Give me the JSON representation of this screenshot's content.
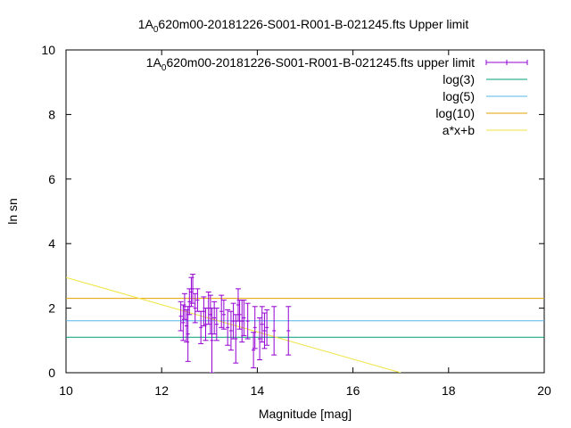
{
  "chart_data": {
    "type": "scatter",
    "title": {
      "prefix": "1A",
      "subscript": "0",
      "suffix": "620m00-20181226-S001-R001-B-021245.fts Upper limit"
    },
    "xlabel": "Magnitude [mag]",
    "ylabel": "ln sn",
    "xlim": [
      10,
      20
    ],
    "ylim": [
      0,
      10
    ],
    "xticks": [
      10,
      12,
      14,
      16,
      18,
      20
    ],
    "yticks": [
      0,
      2,
      4,
      6,
      8,
      10
    ],
    "grid": false,
    "legend_position": "top-right",
    "series": [
      {
        "name": {
          "prefix": "1A",
          "subscript": "0",
          "suffix": "620m00-20181226-S001-R001-B-021245.fts upper limit"
        },
        "kind": "errorbar",
        "color": "#9400d3",
        "points": [
          {
            "x": 12.4,
            "y": 1.75,
            "err": 0.45
          },
          {
            "x": 12.45,
            "y": 1.55,
            "err": 0.55
          },
          {
            "x": 12.48,
            "y": 2.05,
            "err": 0.4
          },
          {
            "x": 12.52,
            "y": 1.45,
            "err": 0.5
          },
          {
            "x": 12.55,
            "y": 1.2,
            "err": 0.85
          },
          {
            "x": 12.58,
            "y": 2.2,
            "err": 0.4
          },
          {
            "x": 12.62,
            "y": 2.5,
            "err": 0.45
          },
          {
            "x": 12.65,
            "y": 2.6,
            "err": 0.45
          },
          {
            "x": 12.7,
            "y": 2.0,
            "err": 0.45
          },
          {
            "x": 12.75,
            "y": 2.25,
            "err": 0.35
          },
          {
            "x": 12.82,
            "y": 1.4,
            "err": 0.5
          },
          {
            "x": 12.88,
            "y": 1.9,
            "err": 0.45
          },
          {
            "x": 12.92,
            "y": 1.5,
            "err": 0.5
          },
          {
            "x": 12.98,
            "y": 2.0,
            "err": 0.5
          },
          {
            "x": 13.02,
            "y": 1.8,
            "err": 0.6
          },
          {
            "x": 13.05,
            "y": 1.0,
            "err": 1.0
          },
          {
            "x": 13.1,
            "y": 1.7,
            "err": 0.5
          },
          {
            "x": 13.15,
            "y": 1.5,
            "err": 0.5
          },
          {
            "x": 13.25,
            "y": 1.9,
            "err": 0.5
          },
          {
            "x": 13.3,
            "y": 1.8,
            "err": 0.45
          },
          {
            "x": 13.38,
            "y": 1.4,
            "err": 0.55
          },
          {
            "x": 13.45,
            "y": 1.3,
            "err": 0.6
          },
          {
            "x": 13.5,
            "y": 1.6,
            "err": 0.55
          },
          {
            "x": 13.55,
            "y": 1.05,
            "err": 0.75
          },
          {
            "x": 13.6,
            "y": 2.1,
            "err": 0.5
          },
          {
            "x": 13.63,
            "y": 1.8,
            "err": 0.45
          },
          {
            "x": 13.68,
            "y": 1.6,
            "err": 0.65
          },
          {
            "x": 13.72,
            "y": 1.7,
            "err": 0.55
          },
          {
            "x": 13.8,
            "y": 1.6,
            "err": 0.55
          },
          {
            "x": 13.92,
            "y": 0.7,
            "err": 0.55
          },
          {
            "x": 13.95,
            "y": 1.4,
            "err": 0.65
          },
          {
            "x": 14.05,
            "y": 1.05,
            "err": 0.65
          },
          {
            "x": 14.1,
            "y": 1.5,
            "err": 0.55
          },
          {
            "x": 14.15,
            "y": 1.3,
            "err": 0.55
          },
          {
            "x": 14.2,
            "y": 1.4,
            "err": 0.55
          },
          {
            "x": 14.35,
            "y": 1.3,
            "err": 0.75
          },
          {
            "x": 14.65,
            "y": 1.3,
            "err": 0.75
          }
        ]
      },
      {
        "name": "log(3)",
        "kind": "hline",
        "y": 1.0986,
        "color": "#009e73"
      },
      {
        "name": "log(5)",
        "kind": "hline",
        "y": 1.6094,
        "color": "#56b4e9"
      },
      {
        "name": "log(10)",
        "kind": "hline",
        "y": 2.3026,
        "color": "#e69f00"
      },
      {
        "name": "a*x+b",
        "kind": "line",
        "color": "#f0e442",
        "x": [
          10,
          17.0
        ],
        "y": [
          2.95,
          0
        ]
      }
    ]
  }
}
